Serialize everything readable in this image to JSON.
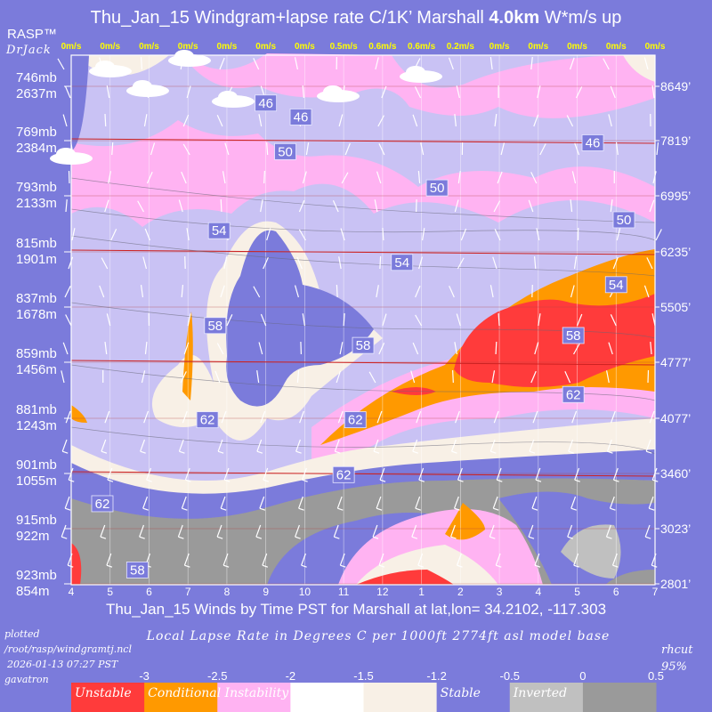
{
  "header": {
    "title_prefix": "Thu_Jan_15 Windgram+lapse rate C/1K’  Marshall ",
    "title_bold": "4.0km",
    "title_suffix": "  W*m/s up",
    "brand": "RASP™",
    "brand_sub": "DrJack"
  },
  "footer": {
    "x_title": "Thu_Jan_15 Winds by Time PST for Marshall at lat,lon= 34.2102, -117.303",
    "plotted_label": "plotted",
    "script_path": "/root/rasp/windgramtj.ncl",
    "timestamp": "2026-01-13 07:27 PST",
    "host": "gavatron",
    "legend_title": "Local Lapse Rate in Degrees C per 1000ft  2774ft asl model base",
    "rhcut_label": "rhcut",
    "rhcut_value": "95%"
  },
  "legend": {
    "ticks": [
      "-3",
      "-2.5",
      "-2",
      "-1.5",
      "-1.2",
      "-0.5",
      "0",
      "0.5"
    ],
    "bins": [
      {
        "color": "#ff3b3b",
        "label": "Unstable"
      },
      {
        "color": "#ff9900",
        "label": "Conditional Instability"
      },
      {
        "color": "#ffb3f2",
        "label": ""
      },
      {
        "color": "#ffffff",
        "label": ""
      },
      {
        "color": "#f8f0e6",
        "label": ""
      },
      {
        "color": "#7b7bdb",
        "label": "Stable"
      },
      {
        "color": "#c0c0c0",
        "label": "Inverted"
      },
      {
        "color": "#9a9a9a",
        "label": ""
      }
    ]
  },
  "chart_data": {
    "type": "heatmap",
    "title": "Thu_Jan_15 Windgram+lapse rate C/1K’  Marshall 4.0km  W*m/s up",
    "x_ticks": [
      "4",
      "5",
      "6",
      "7",
      "8",
      "9",
      "10",
      "11",
      "12",
      "1",
      "2",
      "3",
      "4",
      "5",
      "6",
      "7"
    ],
    "w_star": [
      "0m/s",
      "0m/s",
      "0m/s",
      "0m/s",
      "0m/s",
      "0m/s",
      "0m/s",
      "0.5m/s",
      "0.6m/s",
      "0.6m/s",
      "0.2m/s",
      "0m/s",
      "0m/s",
      "0m/s",
      "0m/s",
      "0m/s"
    ],
    "left_axis": [
      {
        "mb": "746mb",
        "m": "2637m"
      },
      {
        "mb": "769mb",
        "m": "2384m"
      },
      {
        "mb": "793mb",
        "m": "2133m"
      },
      {
        "mb": "815mb",
        "m": "1901m"
      },
      {
        "mb": "837mb",
        "m": "1678m"
      },
      {
        "mb": "859mb",
        "m": "1456m"
      },
      {
        "mb": "881mb",
        "m": "1243m"
      },
      {
        "mb": "901mb",
        "m": "1055m"
      },
      {
        "mb": "915mb",
        "m": "922m"
      },
      {
        "mb": "923mb",
        "m": "854m"
      }
    ],
    "right_axis": [
      "8649’",
      "7819’",
      "6995’",
      "6235’",
      "5505’",
      "4777’",
      "4077’",
      "3460’",
      "3023’",
      "2801’"
    ],
    "contour_labels": [
      {
        "text": "46",
        "t": 5.0,
        "alt": 2555
      },
      {
        "text": "46",
        "t": 5.9,
        "alt": 2490
      },
      {
        "text": "46",
        "t": 13.4,
        "alt": 2370
      },
      {
        "text": "50",
        "t": 5.5,
        "alt": 2330
      },
      {
        "text": "50",
        "t": 9.4,
        "alt": 2165
      },
      {
        "text": "50",
        "t": 14.2,
        "alt": 2030
      },
      {
        "text": "54",
        "t": 3.8,
        "alt": 1985
      },
      {
        "text": "54",
        "t": 8.5,
        "alt": 1855
      },
      {
        "text": "54",
        "t": 14.0,
        "alt": 1765
      },
      {
        "text": "58",
        "t": 3.7,
        "alt": 1600
      },
      {
        "text": "58",
        "t": 7.5,
        "alt": 1520
      },
      {
        "text": "58",
        "t": 12.9,
        "alt": 1560
      },
      {
        "text": "62",
        "t": 3.5,
        "alt": 1235
      },
      {
        "text": "62",
        "t": 7.3,
        "alt": 1235
      },
      {
        "text": "62",
        "t": 12.9,
        "alt": 1330
      },
      {
        "text": "62",
        "t": 7.0,
        "alt": 1050
      },
      {
        "text": "62",
        "t": 0.8,
        "alt": 980
      },
      {
        "text": "58",
        "t": 1.7,
        "alt": 870
      }
    ]
  }
}
